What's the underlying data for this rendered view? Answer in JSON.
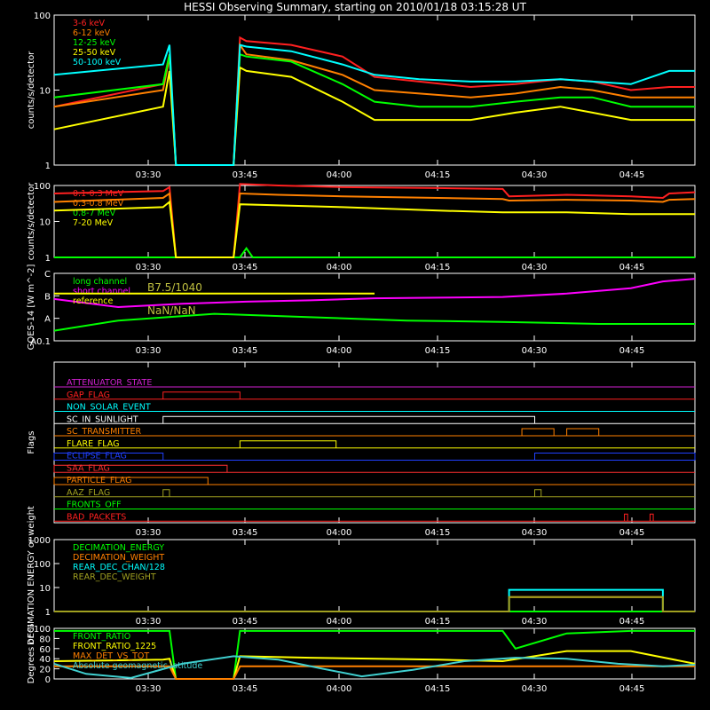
{
  "title": "HESSI Observing Summary, starting on 2010/01/18 03:15:28 UT",
  "time_ticks": [
    "03:30",
    "03:45",
    "04:00",
    "04:15",
    "04:30",
    "04:45"
  ],
  "chart_data": [
    {
      "type": "line",
      "name": "count-rates-low",
      "ylabel": "counts/s/detector",
      "yscale": "log",
      "ylim": [
        1,
        100
      ],
      "y_ticks": [
        "1",
        "10",
        "100"
      ],
      "x_ticks": [
        "03:30",
        "03:45",
        "04:00",
        "04:15",
        "04:30",
        "04:45"
      ],
      "series": [
        {
          "name": "3-6 keV",
          "color": "#ff2020",
          "x": [
            0,
            0.17,
            0.18,
            0.19,
            0.28,
            0.29,
            0.3,
            0.37,
            0.45,
            0.5,
            0.57,
            0.65,
            0.72,
            0.79,
            0.84,
            0.9,
            0.96,
            1.0
          ],
          "y": [
            6,
            12,
            30,
            1,
            1,
            50,
            45,
            40,
            28,
            15,
            13,
            11,
            12,
            14,
            13,
            10,
            11,
            11
          ]
        },
        {
          "name": "6-12 keV",
          "color": "#ff8000",
          "x": [
            0,
            0.17,
            0.18,
            0.19,
            0.28,
            0.29,
            0.3,
            0.37,
            0.45,
            0.5,
            0.57,
            0.65,
            0.72,
            0.79,
            0.84,
            0.9,
            0.96,
            1.0
          ],
          "y": [
            6,
            10,
            28,
            1,
            1,
            40,
            30,
            25,
            16,
            10,
            9,
            8,
            9,
            11,
            10,
            8,
            8,
            8
          ]
        },
        {
          "name": "12-25 keV",
          "color": "#00ff00",
          "x": [
            0,
            0.17,
            0.18,
            0.19,
            0.28,
            0.29,
            0.3,
            0.37,
            0.45,
            0.5,
            0.57,
            0.65,
            0.72,
            0.79,
            0.84,
            0.9,
            0.96,
            1.0
          ],
          "y": [
            8,
            12,
            30,
            1,
            1,
            30,
            28,
            24,
            12,
            7,
            6,
            6,
            7,
            8,
            8,
            6,
            6,
            6
          ]
        },
        {
          "name": "25-50 keV",
          "color": "#ffff00",
          "x": [
            0,
            0.17,
            0.18,
            0.19,
            0.28,
            0.29,
            0.3,
            0.37,
            0.45,
            0.5,
            0.57,
            0.65,
            0.72,
            0.79,
            0.84,
            0.9,
            0.96,
            1.0
          ],
          "y": [
            3,
            6,
            18,
            1,
            1,
            20,
            18,
            15,
            7,
            4,
            4,
            4,
            5,
            6,
            5,
            4,
            4,
            4
          ]
        },
        {
          "name": "50-100 keV",
          "color": "#00ffff",
          "x": [
            0,
            0.17,
            0.18,
            0.19,
            0.28,
            0.29,
            0.3,
            0.37,
            0.45,
            0.5,
            0.57,
            0.65,
            0.72,
            0.79,
            0.84,
            0.9,
            0.96,
            1.0
          ],
          "y": [
            16,
            22,
            40,
            1,
            1,
            40,
            38,
            33,
            22,
            16,
            14,
            13,
            13,
            14,
            13,
            12,
            18,
            18
          ]
        }
      ]
    },
    {
      "type": "line",
      "name": "count-rates-high",
      "ylabel": "counts/s/detector",
      "yscale": "log",
      "ylim": [
        1,
        100
      ],
      "y_ticks": [
        "1",
        "10",
        "100"
      ],
      "x_ticks": [
        "03:30",
        "03:45",
        "04:00",
        "04:15",
        "04:30",
        "04:45"
      ],
      "series": [
        {
          "name": "0.1-0.3 MeV",
          "color": "#ff2020",
          "x": [
            0,
            0.17,
            0.18,
            0.19,
            0.28,
            0.29,
            0.35,
            0.45,
            0.6,
            0.7,
            0.71,
            0.8,
            0.9,
            0.95,
            0.96,
            1.0
          ],
          "y": [
            60,
            70,
            90,
            1,
            1,
            110,
            100,
            90,
            85,
            80,
            50,
            55,
            50,
            45,
            60,
            65
          ]
        },
        {
          "name": "0.3-0.8 MeV",
          "color": "#ff8000",
          "x": [
            0,
            0.17,
            0.18,
            0.19,
            0.28,
            0.29,
            0.35,
            0.45,
            0.6,
            0.7,
            0.71,
            0.8,
            0.9,
            0.95,
            0.96,
            1.0
          ],
          "y": [
            35,
            45,
            60,
            1,
            1,
            60,
            55,
            50,
            45,
            42,
            38,
            40,
            38,
            35,
            40,
            42
          ]
        },
        {
          "name": "0.8-7 MeV",
          "color": "#00ff00",
          "x": [
            0,
            0.17,
            0.18,
            0.19,
            0.28,
            0.29,
            0.3,
            0.31,
            0.32,
            1.0
          ],
          "y": [
            1,
            1,
            1,
            1,
            1,
            1,
            1.8,
            1,
            1,
            1
          ]
        },
        {
          "name": "7-20 MeV",
          "color": "#ffff00",
          "x": [
            0,
            0.17,
            0.18,
            0.19,
            0.28,
            0.29,
            0.35,
            0.45,
            0.6,
            0.7,
            0.8,
            0.9,
            1.0
          ],
          "y": [
            20,
            25,
            35,
            1,
            1,
            30,
            28,
            25,
            20,
            18,
            18,
            16,
            16
          ]
        }
      ]
    },
    {
      "type": "line",
      "name": "goes-flux",
      "ylabel": "GOES-14 [W m^-2]",
      "yscale": "log",
      "y_ticks": [
        "A0.1",
        "A",
        "B",
        "C"
      ],
      "x_ticks": [
        "03:30",
        "03:45",
        "04:00",
        "04:15",
        "04:30",
        "04:45"
      ],
      "annotations": [
        "B7.5/1040",
        "NaN/NaN"
      ],
      "series": [
        {
          "name": "long channel",
          "color": "#00ff00",
          "x": [
            0,
            0.1,
            0.25,
            0.4,
            0.55,
            0.7,
            0.85,
            1.0
          ],
          "y": [
            0.15,
            0.3,
            0.4,
            0.35,
            0.3,
            0.28,
            0.25,
            0.25
          ]
        },
        {
          "name": "short channel",
          "color": "#ff00ff",
          "x": [
            0,
            0.1,
            0.2,
            0.3,
            0.4,
            0.5,
            0.6,
            0.7,
            0.8,
            0.9,
            0.95,
            1.0
          ],
          "y": [
            0.62,
            0.5,
            0.55,
            0.58,
            0.6,
            0.63,
            0.64,
            0.65,
            0.7,
            0.78,
            0.88,
            0.92
          ]
        },
        {
          "name": "reference",
          "color": "#ffff00",
          "x": [
            0,
            0.5
          ],
          "y": [
            0.7,
            0.7
          ]
        }
      ]
    },
    {
      "type": "line",
      "name": "flags",
      "ylabel": "Flags",
      "x_ticks": [
        "03:30",
        "03:45",
        "04:00",
        "04:15",
        "04:30",
        "04:45"
      ],
      "flags": [
        {
          "label": "ATTENUATOR_STATE",
          "color": "#d020d0",
          "on": []
        },
        {
          "label": "GAP_FLAG",
          "color": "#ff2020",
          "on": [
            [
              0.17,
              0.29
            ]
          ]
        },
        {
          "label": "NON_SOLAR_EVENT",
          "color": "#00ffff",
          "on": []
        },
        {
          "label": "SC_IN_SUNLIGHT",
          "color": "#ffffff",
          "on": [
            [
              0.17,
              0.75
            ]
          ]
        },
        {
          "label": "SC_TRANSMITTER",
          "color": "#ff8000",
          "on": [
            [
              0.73,
              0.78
            ],
            [
              0.8,
              0.85
            ]
          ]
        },
        {
          "label": "FLARE_FLAG",
          "color": "#ffff00",
          "on": [
            [
              0.29,
              0.44
            ]
          ]
        },
        {
          "label": "ECLIPSE_FLAG",
          "color": "#2040ff",
          "on": [
            [
              0,
              0.17
            ],
            [
              0.75,
              1.0
            ]
          ]
        },
        {
          "label": "SAA_FLAG",
          "color": "#ff3030",
          "on": [
            [
              0,
              0.27
            ]
          ]
        },
        {
          "label": "PARTICLE_FLAG",
          "color": "#ff8000",
          "on": [
            [
              0,
              0.24
            ]
          ]
        },
        {
          "label": "AAZ_FLAG",
          "color": "#a0a020",
          "on": [
            [
              0.17,
              0.18
            ],
            [
              0.75,
              0.76
            ]
          ]
        },
        {
          "label": "FRONTS_OFF",
          "color": "#00ff00",
          "on": []
        },
        {
          "label": "BAD_PACKETS",
          "color": "#ff2020",
          "on": [
            [
              0.89,
              0.895
            ],
            [
              0.93,
              0.935
            ]
          ]
        }
      ]
    },
    {
      "type": "line",
      "name": "decimation",
      "ylabel": "DECIMATION ENERGY or weight",
      "yscale": "log",
      "ylim": [
        1,
        1000
      ],
      "y_ticks": [
        "1",
        "10",
        "100",
        "1000"
      ],
      "x_ticks": [
        "03:30",
        "03:45",
        "04:00",
        "04:15",
        "04:30",
        "04:45"
      ],
      "series": [
        {
          "name": "DECIMATION_ENERGY",
          "color": "#00ff00",
          "x": [
            0,
            1.0
          ],
          "y": [
            1,
            1
          ]
        },
        {
          "name": "DECIMATION_WEIGHT",
          "color": "#ff8000",
          "x": [
            0,
            0.71,
            0.71,
            0.95,
            0.95,
            1.0
          ],
          "y": [
            1,
            1,
            4,
            4,
            1,
            1
          ]
        },
        {
          "name": "REAR_DEC_CHAN/128",
          "color": "#00ffff",
          "x": [
            0,
            0.71,
            0.71,
            0.95,
            0.95,
            1.0
          ],
          "y": [
            1,
            1,
            8,
            8,
            1,
            1
          ]
        },
        {
          "name": "REAR_DEC_WEIGHT",
          "color": "#a0a020",
          "x": [
            0,
            0.71,
            0.71,
            0.95,
            0.95,
            1.0
          ],
          "y": [
            1,
            1,
            4,
            4,
            1,
            1
          ]
        }
      ]
    },
    {
      "type": "line",
      "name": "ratios",
      "ylabel": "Degrees or %",
      "ylim": [
        0,
        100
      ],
      "y_ticks": [
        "0",
        "20",
        "40",
        "60",
        "80",
        "100"
      ],
      "x_ticks": [
        "03:30",
        "03:45",
        "04:00",
        "04:15",
        "04:30",
        "04:45"
      ],
      "series": [
        {
          "name": "FRONT_RATIO",
          "color": "#00ff00",
          "x": [
            0,
            0.17,
            0.18,
            0.19,
            0.28,
            0.29,
            0.5,
            0.7,
            0.72,
            0.8,
            0.9,
            1.0
          ],
          "y": [
            95,
            95,
            95,
            0,
            0,
            95,
            95,
            95,
            60,
            90,
            95,
            95
          ]
        },
        {
          "name": "FRONT_RATIO_1225",
          "color": "#ffff00",
          "x": [
            0,
            0.17,
            0.18,
            0.19,
            0.28,
            0.29,
            0.4,
            0.6,
            0.7,
            0.8,
            0.9,
            1.0
          ],
          "y": [
            35,
            38,
            40,
            0,
            0,
            45,
            42,
            38,
            35,
            55,
            55,
            30
          ]
        },
        {
          "name": "MAX_DET_VS_TOT",
          "color": "#ff8000",
          "x": [
            0,
            0.17,
            0.18,
            0.19,
            0.28,
            0.29,
            0.5,
            0.7,
            0.9,
            1.0
          ],
          "y": [
            25,
            25,
            25,
            0,
            0,
            25,
            25,
            25,
            25,
            25
          ]
        },
        {
          "name": "Absolute geomagnetic latitude",
          "color": "#40d0d0",
          "x": [
            0,
            0.05,
            0.12,
            0.2,
            0.28,
            0.35,
            0.42,
            0.48,
            0.56,
            0.64,
            0.72,
            0.8,
            0.88,
            0.95,
            1.0
          ],
          "y": [
            30,
            10,
            2,
            30,
            45,
            38,
            20,
            5,
            18,
            35,
            42,
            40,
            30,
            25,
            28
          ]
        }
      ]
    }
  ]
}
